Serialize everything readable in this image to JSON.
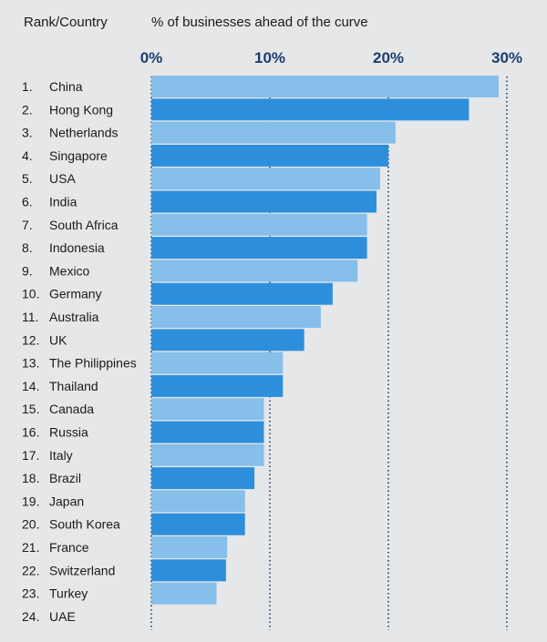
{
  "chart_data": {
    "type": "bar",
    "orientation": "horizontal",
    "header_left": "Rank/Country",
    "header_right": "% of businesses ahead of the curve",
    "xlim": [
      0,
      30
    ],
    "ticks": [
      0,
      10,
      20,
      30
    ],
    "tick_labels": [
      "0%",
      "10%",
      "20%",
      "30%"
    ],
    "grid": "dotted vertical at ticks",
    "colors": {
      "light": "#85bfea",
      "dark": "#2d8fdc",
      "tick": "#1c3e6e",
      "grid": "#1c3e6e",
      "background": "#e6e7e9"
    },
    "rows": [
      {
        "rank": "1.",
        "country": "China",
        "value": 29.3
      },
      {
        "rank": "2.",
        "country": "Hong Kong",
        "value": 26.8
      },
      {
        "rank": "3.",
        "country": "Netherlands",
        "value": 20.6
      },
      {
        "rank": "4.",
        "country": "Singapore",
        "value": 20.0
      },
      {
        "rank": "5.",
        "country": "USA",
        "value": 19.3
      },
      {
        "rank": "6.",
        "country": "India",
        "value": 19.0
      },
      {
        "rank": "7.",
        "country": "South Africa",
        "value": 18.2
      },
      {
        "rank": "8.",
        "country": "Indonesia",
        "value": 18.2
      },
      {
        "rank": "9.",
        "country": "Mexico",
        "value": 17.4
      },
      {
        "rank": "10.",
        "country": "Germany",
        "value": 15.3
      },
      {
        "rank": "11.",
        "country": "Australia",
        "value": 14.3
      },
      {
        "rank": "12.",
        "country": "UK",
        "value": 12.9
      },
      {
        "rank": "13.",
        "country": "The Philippines",
        "value": 11.1
      },
      {
        "rank": "14.",
        "country": "Thailand",
        "value": 11.1
      },
      {
        "rank": "15.",
        "country": "Canada",
        "value": 9.5
      },
      {
        "rank": "16.",
        "country": "Russia",
        "value": 9.5
      },
      {
        "rank": "17.",
        "country": "Italy",
        "value": 9.5
      },
      {
        "rank": "18.",
        "country": "Brazil",
        "value": 8.7
      },
      {
        "rank": "19.",
        "country": "Japan",
        "value": 7.9
      },
      {
        "rank": "20.",
        "country": "South Korea",
        "value": 7.9
      },
      {
        "rank": "21.",
        "country": "France",
        "value": 6.4
      },
      {
        "rank": "22.",
        "country": "Switzerland",
        "value": 6.3
      },
      {
        "rank": "23.",
        "country": "Turkey",
        "value": 5.5
      },
      {
        "rank": "24.",
        "country": "UAE",
        "value": 0
      }
    ]
  }
}
